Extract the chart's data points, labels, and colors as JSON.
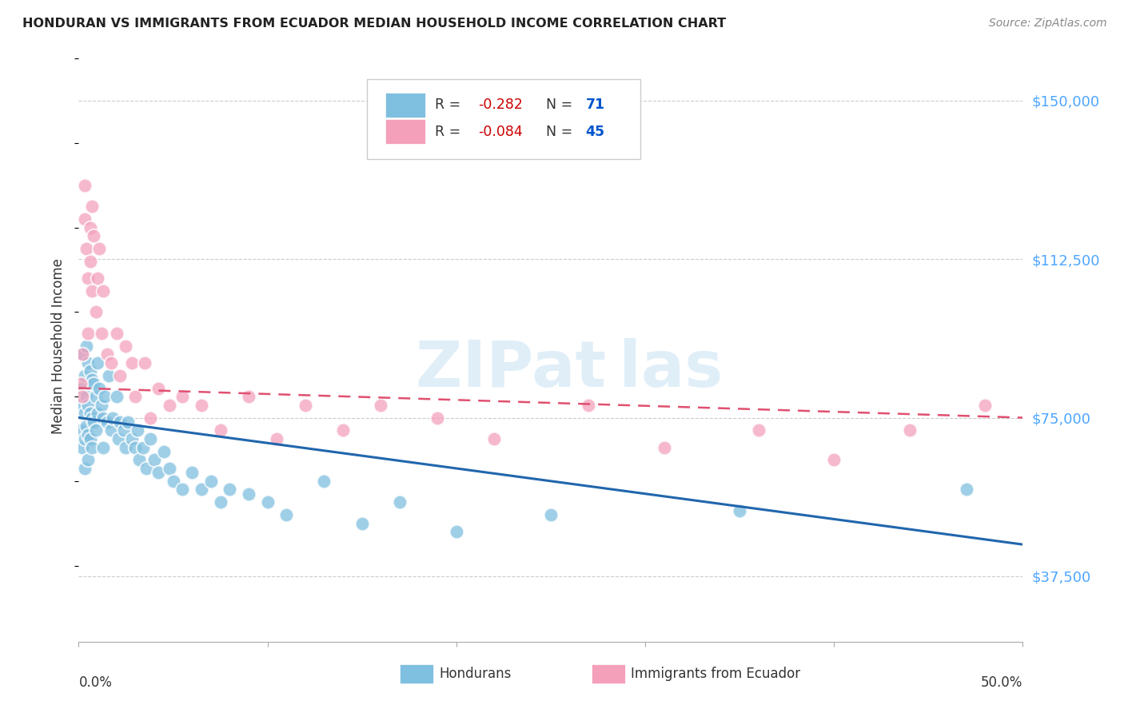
{
  "title": "HONDURAN VS IMMIGRANTS FROM ECUADOR MEDIAN HOUSEHOLD INCOME CORRELATION CHART",
  "source": "Source: ZipAtlas.com",
  "ylabel": "Median Household Income",
  "yticks": [
    37500,
    75000,
    112500,
    150000
  ],
  "ytick_labels": [
    "$37,500",
    "$75,000",
    "$112,500",
    "$150,000"
  ],
  "xlim": [
    0.0,
    0.5
  ],
  "ylim": [
    22000,
    162000
  ],
  "hondurans_color": "#7fbfdf",
  "ecuador_color": "#f4a0bb",
  "hondurans_line_color": "#2166ac",
  "ecuador_line_color": "#e05070",
  "hondurans_x": [
    0.001,
    0.001,
    0.002,
    0.002,
    0.002,
    0.003,
    0.003,
    0.003,
    0.003,
    0.004,
    0.004,
    0.004,
    0.005,
    0.005,
    0.005,
    0.005,
    0.006,
    0.006,
    0.006,
    0.007,
    0.007,
    0.007,
    0.008,
    0.008,
    0.009,
    0.009,
    0.01,
    0.01,
    0.011,
    0.012,
    0.013,
    0.013,
    0.014,
    0.015,
    0.016,
    0.017,
    0.018,
    0.02,
    0.021,
    0.022,
    0.024,
    0.025,
    0.026,
    0.028,
    0.03,
    0.031,
    0.032,
    0.034,
    0.036,
    0.038,
    0.04,
    0.042,
    0.045,
    0.048,
    0.05,
    0.055,
    0.06,
    0.065,
    0.07,
    0.075,
    0.08,
    0.09,
    0.1,
    0.11,
    0.13,
    0.15,
    0.17,
    0.2,
    0.25,
    0.35,
    0.47
  ],
  "hondurans_y": [
    78000,
    72000,
    90000,
    82000,
    68000,
    85000,
    76000,
    70000,
    63000,
    92000,
    80000,
    73000,
    88000,
    78000,
    71000,
    65000,
    86000,
    76000,
    70000,
    84000,
    75000,
    68000,
    83000,
    74000,
    80000,
    72000,
    88000,
    76000,
    82000,
    78000,
    75000,
    68000,
    80000,
    74000,
    85000,
    72000,
    75000,
    80000,
    70000,
    74000,
    72000,
    68000,
    74000,
    70000,
    68000,
    72000,
    65000,
    68000,
    63000,
    70000,
    65000,
    62000,
    67000,
    63000,
    60000,
    58000,
    62000,
    58000,
    60000,
    55000,
    58000,
    57000,
    55000,
    52000,
    60000,
    50000,
    55000,
    48000,
    52000,
    53000,
    58000
  ],
  "ecuador_x": [
    0.001,
    0.002,
    0.002,
    0.003,
    0.003,
    0.004,
    0.005,
    0.005,
    0.006,
    0.006,
    0.007,
    0.007,
    0.008,
    0.009,
    0.01,
    0.011,
    0.012,
    0.013,
    0.015,
    0.017,
    0.02,
    0.022,
    0.025,
    0.028,
    0.03,
    0.035,
    0.038,
    0.042,
    0.048,
    0.055,
    0.065,
    0.075,
    0.09,
    0.105,
    0.12,
    0.14,
    0.16,
    0.19,
    0.22,
    0.27,
    0.31,
    0.36,
    0.4,
    0.44,
    0.48
  ],
  "ecuador_y": [
    83000,
    90000,
    80000,
    130000,
    122000,
    115000,
    108000,
    95000,
    120000,
    112000,
    125000,
    105000,
    118000,
    100000,
    108000,
    115000,
    95000,
    105000,
    90000,
    88000,
    95000,
    85000,
    92000,
    88000,
    80000,
    88000,
    75000,
    82000,
    78000,
    80000,
    78000,
    72000,
    80000,
    70000,
    78000,
    72000,
    78000,
    75000,
    70000,
    78000,
    68000,
    72000,
    65000,
    72000,
    78000
  ]
}
